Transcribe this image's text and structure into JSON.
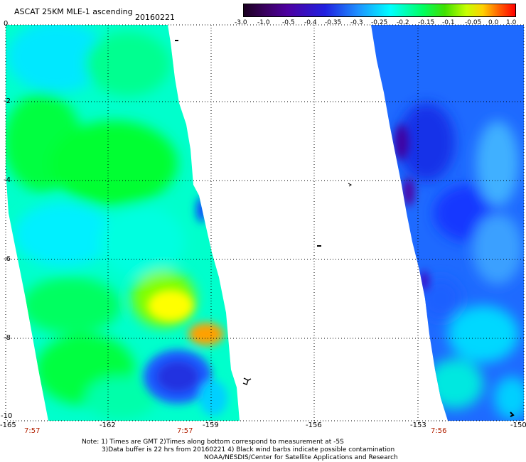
{
  "title": "ASCAT 25KM MLE-1 ascending",
  "date": "20160221",
  "colorbar": {
    "ticks": [
      "-3.0",
      "-1.0",
      "-0.5",
      "-0.4",
      "-0.35",
      "-0.3",
      "-0.25",
      "-0.2",
      "-0.15",
      "-0.1",
      "-0.05",
      "0.0",
      "1.0"
    ]
  },
  "axes": {
    "lat_labels": [
      "0",
      "-2",
      "-4",
      "-6",
      "-8",
      "-10"
    ],
    "lon_labels": [
      "-165",
      "-162",
      "-159",
      "-156",
      "-153",
      "-150"
    ]
  },
  "times": [
    "7:57",
    "7:57",
    "7:56"
  ],
  "notes": [
    "Note: 1) Times are GMT 2)Times along bottom correspond to measurement at -5S",
    "3)Data buffer is 22 hrs from 20160221 4) Black wind barbs indicate possible contamination",
    "NOAA/NESDIS/Center for Satellite Applications and Research"
  ],
  "colors": {
    "blue": "#1e5aff",
    "cyan": "#00ffff",
    "green": "#00ff50",
    "yellow": "#ffff00",
    "orange": "#ffa000"
  }
}
